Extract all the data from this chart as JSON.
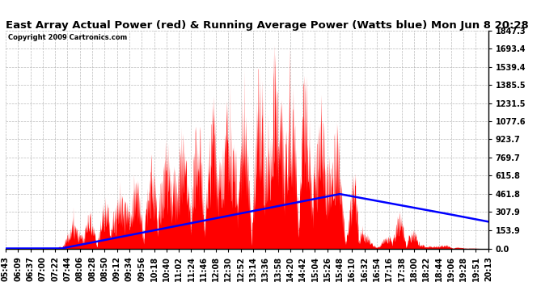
{
  "title": "East Array Actual Power (red) & Running Average Power (Watts blue) Mon Jun 8 20:28",
  "copyright": "Copyright 2009 Cartronics.com",
  "ylabel_values": [
    0.0,
    153.9,
    307.9,
    461.8,
    615.8,
    769.7,
    923.7,
    1077.6,
    1231.5,
    1385.5,
    1539.4,
    1693.4,
    1847.3
  ],
  "ylim": [
    0,
    1847.3
  ],
  "x_tick_labels": [
    "05:43",
    "06:09",
    "06:37",
    "07:00",
    "07:22",
    "07:44",
    "08:06",
    "08:28",
    "08:50",
    "09:12",
    "09:34",
    "09:56",
    "10:18",
    "10:40",
    "11:02",
    "11:24",
    "11:46",
    "12:08",
    "12:30",
    "12:52",
    "13:14",
    "13:36",
    "13:58",
    "14:20",
    "14:42",
    "15:04",
    "15:26",
    "15:48",
    "16:10",
    "16:32",
    "16:54",
    "17:16",
    "17:38",
    "18:00",
    "18:22",
    "18:44",
    "19:06",
    "19:28",
    "19:51",
    "20:13"
  ],
  "background_color": "#ffffff",
  "grid_color": "#aaaaaa",
  "fill_color": "#ff0000",
  "avg_line_color": "#0000ff",
  "title_fontsize": 9.5,
  "tick_fontsize": 7,
  "copyright_fontsize": 6
}
